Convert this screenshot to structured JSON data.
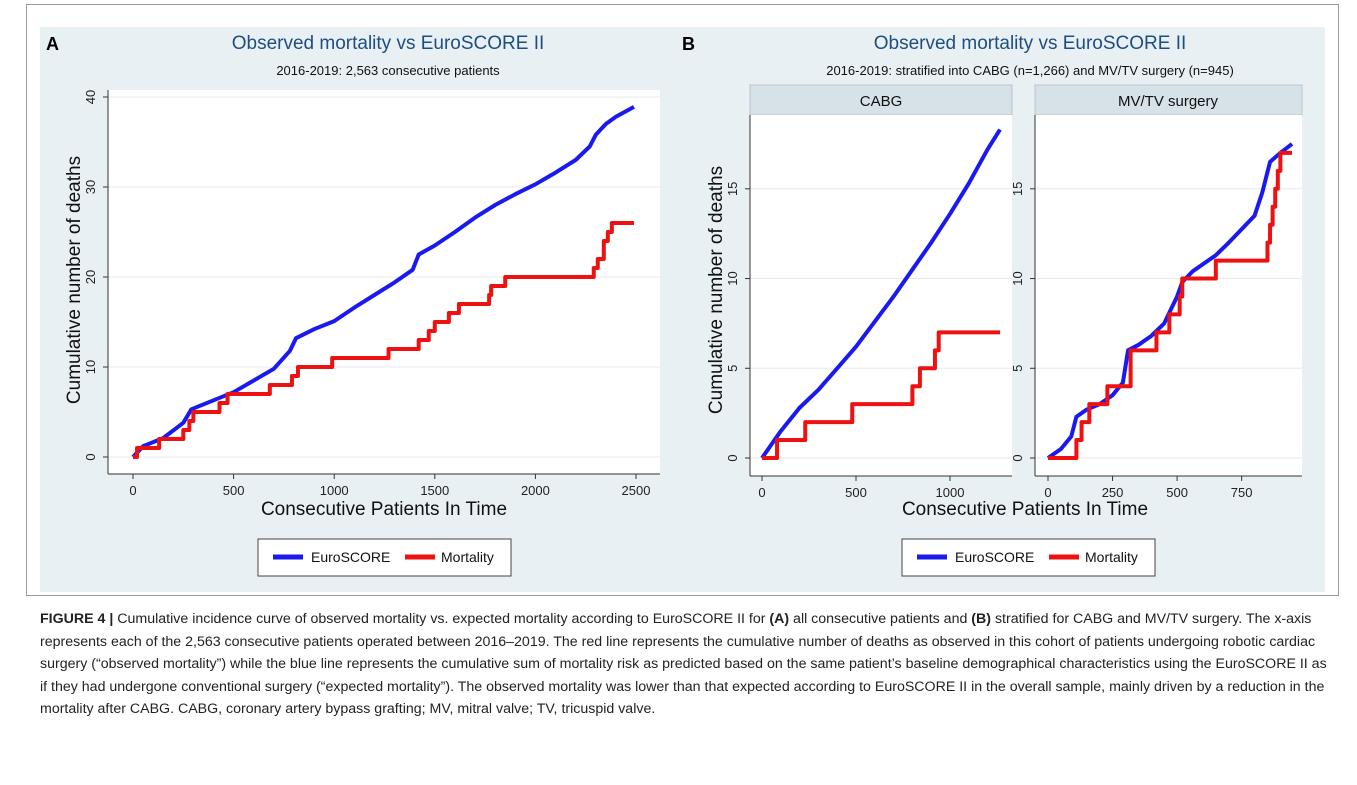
{
  "chart_data": [
    {
      "panel": "A",
      "type": "line",
      "title": "Observed mortality vs EuroSCORE II",
      "subtitle": "2016-2019: 2,563 consecutive patients",
      "xlabel": "Consecutive Patients In Time",
      "ylabel": "Cumulative number of deaths",
      "xlim": [
        0,
        2500
      ],
      "ylim": [
        0,
        40
      ],
      "xticks": [
        0,
        500,
        1000,
        1500,
        2000,
        2500
      ],
      "yticks": [
        0,
        10,
        20,
        30,
        40
      ],
      "legend_position": "bottom",
      "series": [
        {
          "name": "EuroSCORE",
          "color": "#1a1af0",
          "step": false,
          "points": [
            [
              0,
              0
            ],
            [
              50,
              1.2
            ],
            [
              150,
              2.1
            ],
            [
              250,
              3.8
            ],
            [
              290,
              5.3
            ],
            [
              400,
              6.3
            ],
            [
              500,
              7.2
            ],
            [
              600,
              8.5
            ],
            [
              700,
              9.8
            ],
            [
              780,
              11.8
            ],
            [
              810,
              13.2
            ],
            [
              900,
              14.2
            ],
            [
              1000,
              15.1
            ],
            [
              1100,
              16.6
            ],
            [
              1200,
              18.0
            ],
            [
              1300,
              19.4
            ],
            [
              1390,
              20.8
            ],
            [
              1420,
              22.5
            ],
            [
              1500,
              23.5
            ],
            [
              1600,
              25.0
            ],
            [
              1700,
              26.6
            ],
            [
              1800,
              28.0
            ],
            [
              1900,
              29.2
            ],
            [
              2000,
              30.3
            ],
            [
              2100,
              31.6
            ],
            [
              2200,
              33.0
            ],
            [
              2270,
              34.5
            ],
            [
              2300,
              35.8
            ],
            [
              2350,
              37.0
            ],
            [
              2400,
              37.8
            ],
            [
              2490,
              38.9
            ]
          ]
        },
        {
          "name": "Mortality",
          "color": "#ee1111",
          "step": true,
          "points": [
            [
              0,
              0
            ],
            [
              20,
              1
            ],
            [
              130,
              2
            ],
            [
              250,
              3
            ],
            [
              280,
              4
            ],
            [
              300,
              5
            ],
            [
              430,
              6
            ],
            [
              470,
              7
            ],
            [
              680,
              8
            ],
            [
              790,
              9
            ],
            [
              820,
              10
            ],
            [
              990,
              11
            ],
            [
              1270,
              12
            ],
            [
              1420,
              13
            ],
            [
              1470,
              14
            ],
            [
              1500,
              15
            ],
            [
              1570,
              16
            ],
            [
              1620,
              17
            ],
            [
              1770,
              18
            ],
            [
              1780,
              19
            ],
            [
              1850,
              20
            ],
            [
              2290,
              21
            ],
            [
              2310,
              22
            ],
            [
              2340,
              24
            ],
            [
              2360,
              25
            ],
            [
              2380,
              26
            ],
            [
              2490,
              26
            ]
          ]
        }
      ]
    },
    {
      "panel": "B",
      "type": "line",
      "title": "Observed mortality vs EuroSCORE II",
      "subtitle": "2016-2019: stratified into CABG (n=1,266) and MV/TV surgery (n=945)",
      "xlabel": "Consecutive Patients In Time",
      "ylabel": "Cumulative number of deaths",
      "legend_position": "bottom",
      "facets": [
        {
          "label": "CABG",
          "xlim": [
            0,
            1266
          ],
          "ylim": [
            0,
            18.5
          ],
          "xticks": [
            0,
            500,
            1000
          ],
          "yticks": [
            0,
            5,
            10,
            15
          ],
          "series": [
            {
              "name": "EuroSCORE",
              "color": "#1a1af0",
              "step": false,
              "points": [
                [
                  0,
                  0
                ],
                [
                  100,
                  1.5
                ],
                [
                  200,
                  2.8
                ],
                [
                  300,
                  3.8
                ],
                [
                  400,
                  5.0
                ],
                [
                  500,
                  6.2
                ],
                [
                  600,
                  7.6
                ],
                [
                  700,
                  9.0
                ],
                [
                  800,
                  10.5
                ],
                [
                  900,
                  12.0
                ],
                [
                  1000,
                  13.6
                ],
                [
                  1100,
                  15.3
                ],
                [
                  1200,
                  17.2
                ],
                [
                  1266,
                  18.3
                ]
              ]
            },
            {
              "name": "Mortality",
              "color": "#ee1111",
              "step": true,
              "points": [
                [
                  0,
                  0
                ],
                [
                  80,
                  1
                ],
                [
                  230,
                  2
                ],
                [
                  480,
                  3
                ],
                [
                  800,
                  4
                ],
                [
                  840,
                  5
                ],
                [
                  920,
                  6
                ],
                [
                  940,
                  7
                ],
                [
                  1266,
                  7
                ]
              ]
            }
          ]
        },
        {
          "label": "MV/TV surgery",
          "xlim": [
            0,
            945
          ],
          "ylim": [
            0,
            18.5
          ],
          "xticks": [
            0,
            250,
            500,
            750
          ],
          "yticks": [
            0,
            5,
            10,
            15
          ],
          "series": [
            {
              "name": "EuroSCORE",
              "color": "#1a1af0",
              "step": false,
              "points": [
                [
                  0,
                  0
                ],
                [
                  50,
                  0.5
                ],
                [
                  90,
                  1.2
                ],
                [
                  110,
                  2.3
                ],
                [
                  150,
                  2.7
                ],
                [
                  200,
                  3.0
                ],
                [
                  250,
                  3.5
                ],
                [
                  290,
                  4.2
                ],
                [
                  310,
                  6.0
                ],
                [
                  350,
                  6.3
                ],
                [
                  400,
                  6.8
                ],
                [
                  450,
                  7.5
                ],
                [
                  500,
                  9.0
                ],
                [
                  520,
                  9.8
                ],
                [
                  560,
                  10.4
                ],
                [
                  650,
                  11.3
                ],
                [
                  700,
                  12.0
                ],
                [
                  800,
                  13.5
                ],
                [
                  830,
                  14.8
                ],
                [
                  860,
                  16.5
                ],
                [
                  900,
                  17.0
                ],
                [
                  945,
                  17.5
                ]
              ]
            },
            {
              "name": "Mortality",
              "color": "#ee1111",
              "step": true,
              "points": [
                [
                  0,
                  0
                ],
                [
                  110,
                  1
                ],
                [
                  130,
                  2
                ],
                [
                  160,
                  3
                ],
                [
                  230,
                  4
                ],
                [
                  320,
                  6
                ],
                [
                  420,
                  7
                ],
                [
                  470,
                  8
                ],
                [
                  510,
                  9
                ],
                [
                  520,
                  10
                ],
                [
                  650,
                  11
                ],
                [
                  850,
                  12
                ],
                [
                  860,
                  13
                ],
                [
                  870,
                  14
                ],
                [
                  880,
                  15
                ],
                [
                  890,
                  16
                ],
                [
                  900,
                  17
                ],
                [
                  945,
                  17
                ]
              ]
            }
          ]
        }
      ]
    }
  ],
  "caption": {
    "label": "FIGURE 4 |",
    "segments": [
      {
        "text": " Cumulative incidence curve of observed mortality vs. expected mortality according to EuroSCORE II for ",
        "bold": false
      },
      {
        "text": "(A)",
        "bold": true
      },
      {
        "text": " all consecutive patients and ",
        "bold": false
      },
      {
        "text": "(B)",
        "bold": true
      },
      {
        "text": " stratified for CABG and MV/TV surgery. The x-axis represents each of the 2,563 consecutive patients operated between 2016–2019. The red line represents the cumulative number of deaths as observed in this cohort of patients undergoing robotic cardiac surgery (“observed mortality”) while the blue line represents the cumulative sum of mortality risk as predicted based on the same patient’s baseline demographical characteristics using the EuroSCORE II as if they had undergone conventional surgery (“expected mortality”). The observed mortality was lower than that expected according to EuroSCORE II in the overall sample, mainly driven by a reduction in the mortality after CABG. CABG, coronary artery bypass grafting; MV, mitral valve; TV, tricuspid valve.",
        "bold": false
      }
    ]
  }
}
